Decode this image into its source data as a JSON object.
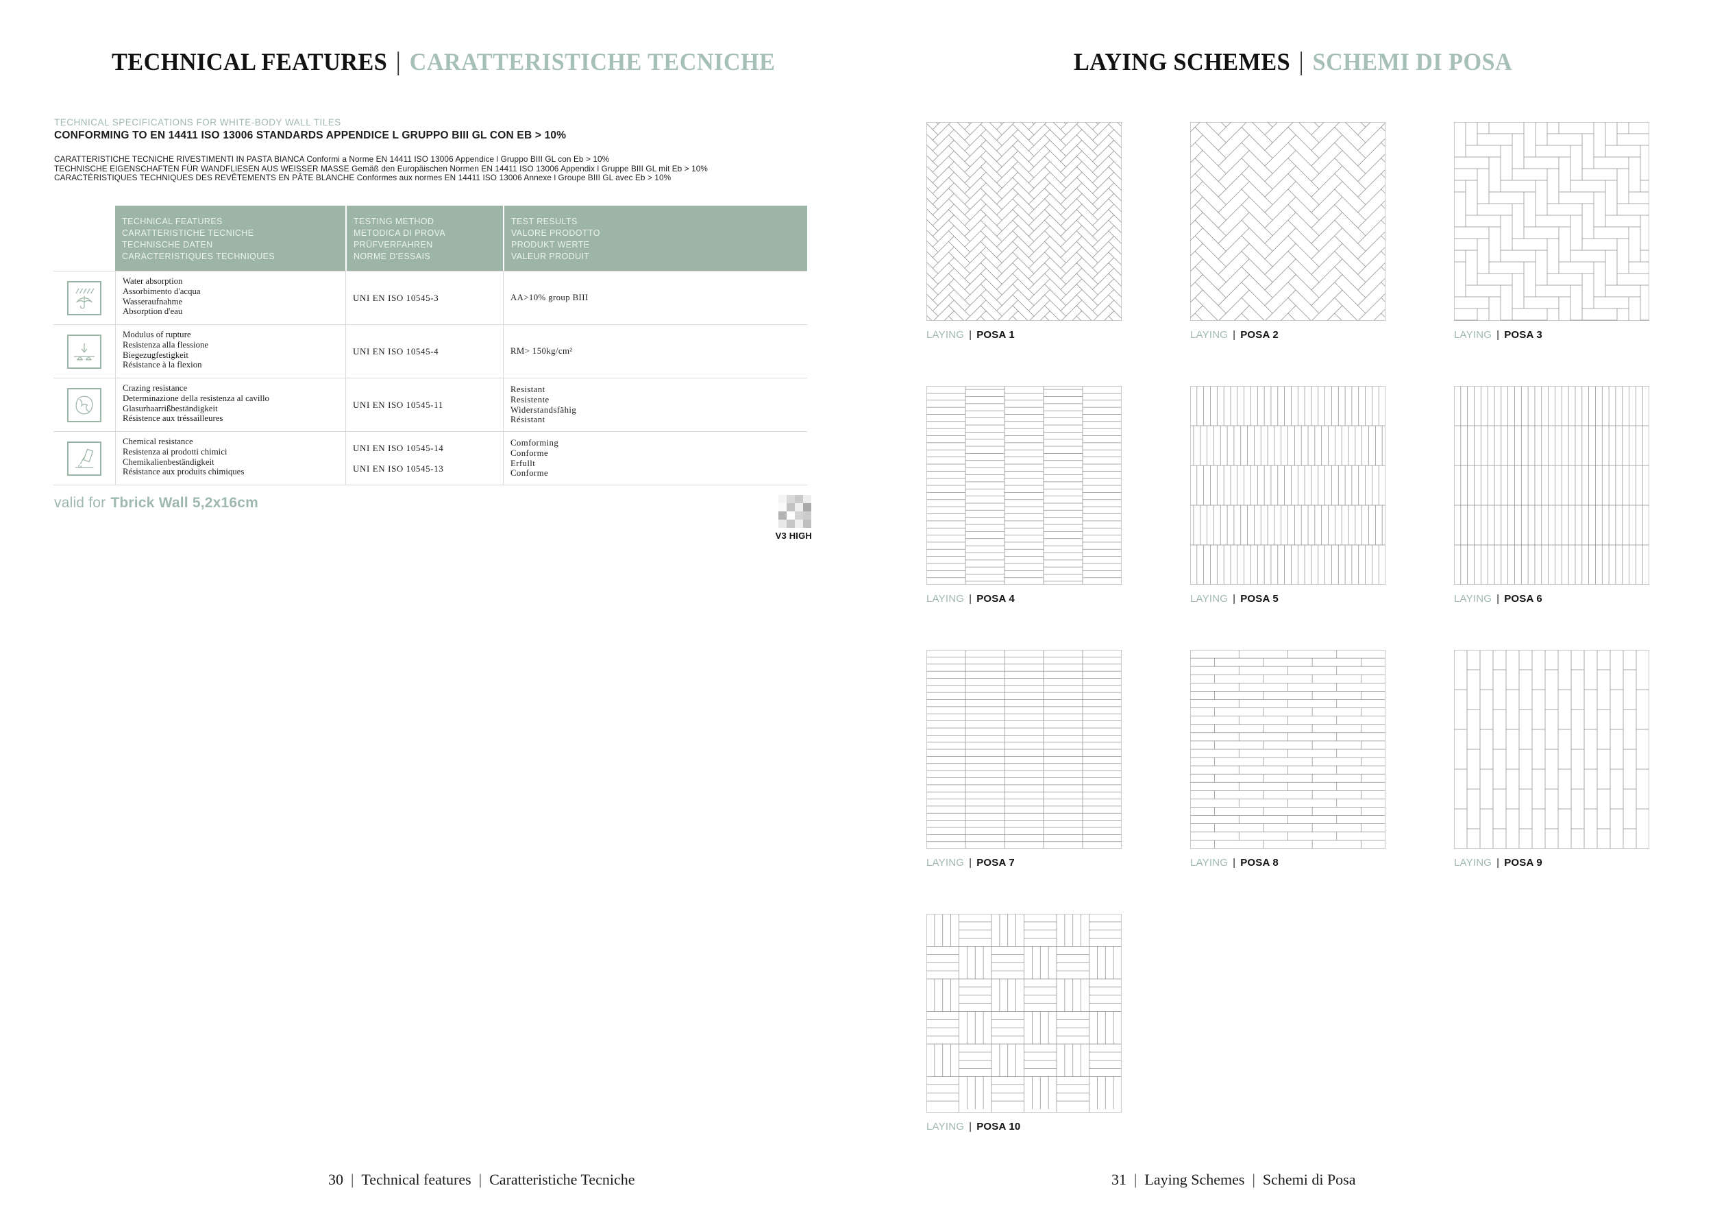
{
  "colors": {
    "accent": "#9fb8ad",
    "accent_light": "#a7c0b5",
    "table_header_bg": "#9cb5a6",
    "pattern_line": "#8e8e8e",
    "pattern_border": "#bdbdbd"
  },
  "left_page": {
    "title": {
      "primary": "TECHNICAL FEATURES",
      "divider": "|",
      "secondary": "CARATTERISTICHE TECNICHE"
    },
    "intro": {
      "tagline": "TECHNICAL SPECIFICATIONS FOR WHITE-BODY WALL TILES",
      "conformity": "CONFORMING TO EN 14411 ISO 13006 STANDARDS APPENDICE L GRUPPO BIII GL CON EB > 10%",
      "language_lines": [
        "CARATTERISTICHE TECNICHE RIVESTIMENTI IN PASTA BIANCA Conformi a Norme EN 14411 ISO 13006 Appendice l Gruppo BIII GL con Eb > 10%",
        "TECHNISCHE EIGENSCHAFTEN FÜR WANDFLIESEN AUS WEISSER MASSE Gemäß den Europäischen Normen EN 14411 ISO 13006 Appendix l Gruppe BIII GL mit Eb > 10%",
        "CARACTÉRISTIQUES TECHNIQUES DES REVÊTEMENTS EN PÂTE BLANCHE Conformes aux normes EN 14411 ISO 13006 Annexe l Groupe BIII GL avec Eb > 10%"
      ]
    },
    "table": {
      "headers": [
        {
          "lines": [
            "TECHNICAL FEATURES",
            "CARATTERISTICHE TECNICHE",
            "TECHNISCHE DATEN",
            "CARACTERISTIQUES TECHNIQUES"
          ]
        },
        {
          "lines": [
            "TESTING METHOD",
            "METODICA DI PROVA",
            "PRÜFVERFAHREN",
            "NORME D'ESSAIS"
          ]
        },
        {
          "lines": [
            "TEST RESULTS",
            "VALORE PRODOTTO",
            "PRODUKT WERTE",
            "VALEUR PRODUIT"
          ]
        }
      ],
      "rows": [
        {
          "icon": "water-absorption-icon",
          "feature": [
            "Water absorption",
            "Assorbimento d'acqua",
            "Wasseraufnahme",
            "Absorption d'eau"
          ],
          "method": [
            "UNI EN ISO 10545-3"
          ],
          "result": [
            "AA>10% group BIII"
          ]
        },
        {
          "icon": "modulus-of-rupture-icon",
          "feature": [
            "Modulus of rupture",
            "Resistenza alla flessione",
            "Biegezugfestigkeit",
            "Résistance à la flexion"
          ],
          "method": [
            "UNI EN ISO 10545-4"
          ],
          "result": [
            "RM> 150kg/cm²"
          ]
        },
        {
          "icon": "crazing-resistance-icon",
          "feature": [
            "Crazing resistance",
            "Determinazione della resistenza al cavillo",
            "Glasurhaarrißbeständigkeit",
            "Résistence aux tréssailleures"
          ],
          "method": [
            "UNI EN ISO 10545-11"
          ],
          "result": [
            "Resistant",
            "Resistente",
            "Widerstandsfähig",
            "Résistant"
          ]
        },
        {
          "icon": "chemical-resistance-icon",
          "feature": [
            "Chemical resistance",
            "Resistenza ai prodotti chimici",
            "Chemikalienbeständigkeit",
            "Résistance aux produits chimiques"
          ],
          "method": [
            "UNI EN ISO 10545-14",
            "UNI EN ISO 10545-13"
          ],
          "result": [
            "Comforming",
            "Conforme",
            "Erfullt",
            "Conforme"
          ]
        }
      ]
    },
    "valid_for": {
      "prefix": "valid for",
      "product": "Tbrick Wall 5,2x16cm"
    },
    "shade_variation": {
      "label": "V3 HIGH",
      "swatches": [
        [
          "#f4f4f4",
          "#d9d9d9",
          "#c9c9c9",
          "#ededed"
        ],
        [
          "#fafafa",
          "#c2c2c2",
          "#efefef",
          "#a9a9a9"
        ],
        [
          "#b3b3b3",
          "#ffffff",
          "#d4d4d4",
          "#cccccc"
        ],
        [
          "#e8e8e8",
          "#c6c6c6",
          "#eeeeee",
          "#bfbfbf"
        ]
      ]
    },
    "footer": {
      "page_number": "30",
      "divider": "|",
      "section_en": "Technical features",
      "section_it": "Caratteristiche Tecniche"
    }
  },
  "right_page": {
    "title": {
      "primary": "LAYING SCHEMES",
      "divider": "|",
      "secondary": "SCHEMI DI POSA"
    },
    "laying_label": "LAYING",
    "posa_label": "POSA",
    "label_divider": "|",
    "schemes": [
      {
        "number": "1",
        "pattern": "herringbone-45-small"
      },
      {
        "number": "2",
        "pattern": "herringbone-45-large"
      },
      {
        "number": "3",
        "pattern": "herringbone-90"
      },
      {
        "number": "4",
        "pattern": "stacked-columns-offset"
      },
      {
        "number": "5",
        "pattern": "vertical-rows-offset"
      },
      {
        "number": "6",
        "pattern": "vertical-grid"
      },
      {
        "number": "7",
        "pattern": "horizontal-grid"
      },
      {
        "number": "8",
        "pattern": "running-bond-horizontal"
      },
      {
        "number": "9",
        "pattern": "running-bond-vertical"
      },
      {
        "number": "10",
        "pattern": "basketweave"
      }
    ],
    "footer": {
      "page_number": "31",
      "divider": "|",
      "section_en": "Laying Schemes",
      "section_it": "Schemi di Posa"
    }
  }
}
